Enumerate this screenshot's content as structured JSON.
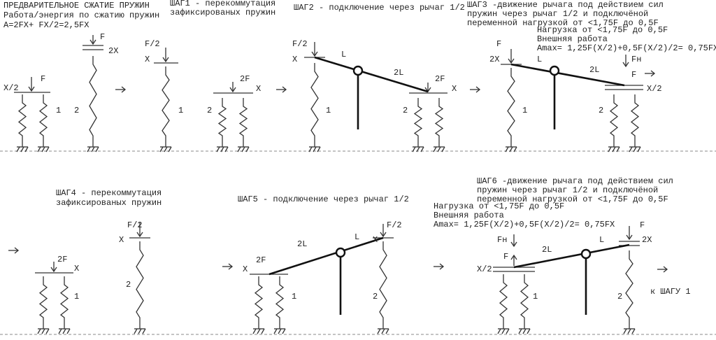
{
  "panel1": {
    "title": [
      "ПРЕДВАРИТЕЛЬНОЕ СЖАТИЕ ПРУЖИН",
      "Работа/энергия по сжатию пружин",
      "A=2FX+ FX/2=2,5FX"
    ]
  },
  "step1": {
    "title": [
      "ШАГ1 - перекоммутация",
      "зафиксированых пружин"
    ]
  },
  "step2": {
    "title": [
      "ШАГ2 - подключение через рычаг 1/2"
    ]
  },
  "step3": {
    "title": [
      "ШАГ3 -движение рычага под действием сил",
      "пружин через рычаг 1/2 и подключёной",
      "переменной нагрузкой от <1,75F до 0,5F"
    ],
    "notes": [
      "Нагрузка от <1,75F до 0,5F",
      "Внешняя работа",
      "Amax= 1,25F(X/2)+0,5F(X/2)/2= 0,75FX"
    ]
  },
  "step4": {
    "title": [
      "ШАГ4 - перекоммутация",
      "зафиксированых пружин"
    ]
  },
  "step5": {
    "title": [
      "ШАГ5 - подключение через рычаг 1/2"
    ]
  },
  "step6": {
    "title": [
      "ШАГ6 -движение рычага под действием сил",
      "пружин через рычаг 1/2 и подключёной",
      "переменной нагрузкой от <1,75F до 0,5F"
    ],
    "notes": [
      "Нагрузка от <1,75F до 0,5F",
      "Внешняя работа",
      "Amax= 1,25F(X/2)+0,5F(X/2)/2= 0,75FX"
    ]
  },
  "footer": "к ШАГУ 1",
  "labels": [
    "X/2",
    "F",
    "1",
    "2",
    "F",
    "2X",
    "F/2",
    "X",
    "1",
    "2F",
    "X",
    "2",
    "F/2",
    "X",
    "L",
    "2L",
    "2F",
    "X",
    "1",
    "2",
    "F",
    "2X",
    "L",
    "2L",
    "Fн",
    "F",
    "X/2",
    "1",
    "2",
    "2F",
    "X",
    "1",
    "F/2",
    "X",
    "2",
    "2F",
    "X",
    "2L",
    "L",
    "F/2",
    "X",
    "1",
    "2",
    "Fн",
    "F",
    "X/2",
    "2L",
    "L",
    "F",
    "2X",
    "1",
    "2"
  ]
}
